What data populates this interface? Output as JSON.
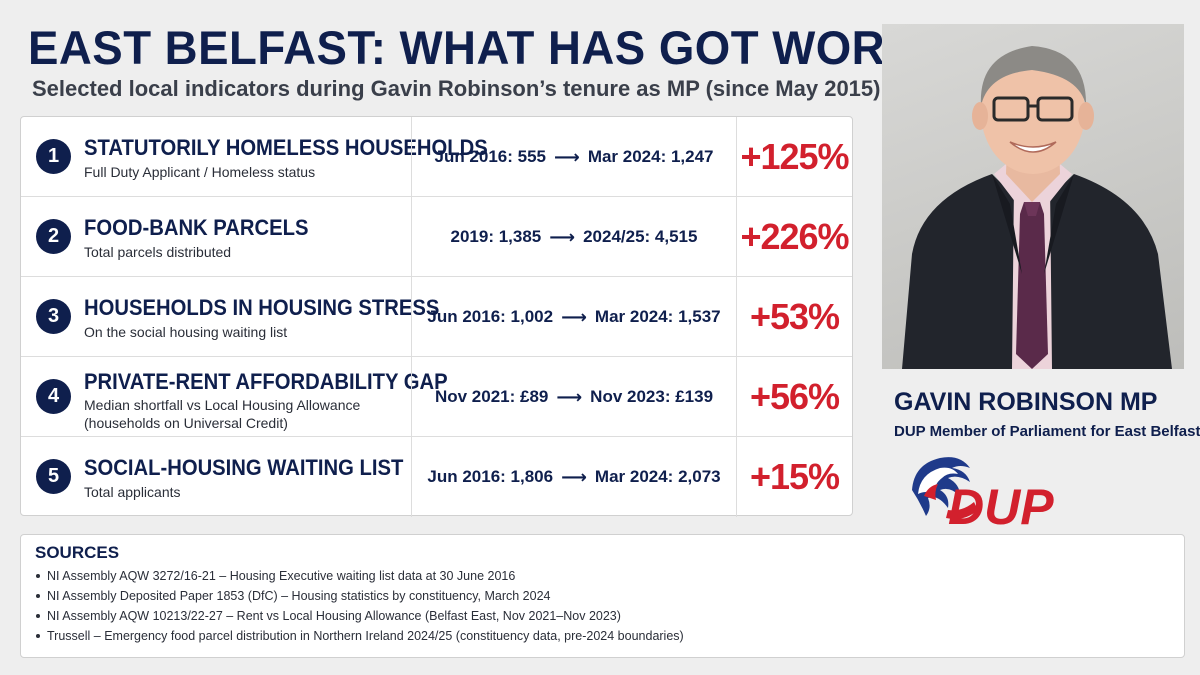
{
  "header": {
    "title": "EAST BELFAST: WHAT HAS GOT WORSE?",
    "subtitle": "Selected local indicators during Gavin Robinson’s tenure as MP (since May 2015)"
  },
  "indicators": [
    {
      "number": "1",
      "title": "STATUTORILY HOMELESS HOUSEHOLDS",
      "subtitle": "Full Duty Applicant / Homeless status",
      "from": "Jun 2016: 555",
      "to": "Mar 2024: 1,247",
      "change": "+125%"
    },
    {
      "number": "2",
      "title": "FOOD-BANK PARCELS",
      "subtitle": "Total parcels distributed",
      "from": "2019: 1,385",
      "to": "2024/25: 4,515",
      "change": "+226%"
    },
    {
      "number": "3",
      "title": "HOUSEHOLDS IN HOUSING STRESS",
      "subtitle": "On the social housing waiting list",
      "from": "Jun 2016: 1,002",
      "to": "Mar 2024: 1,537",
      "change": "+53%"
    },
    {
      "number": "4",
      "title": "PRIVATE-RENT AFFORDABILITY GAP",
      "subtitle_line1": "Median shortfall vs Local Housing Allowance",
      "subtitle_line2": "(households on Universal Credit)",
      "from": "Nov 2021: £89",
      "to": "Nov 2023: £139",
      "change": "+56%"
    },
    {
      "number": "5",
      "title": "SOCIAL-HOUSING WAITING LIST",
      "subtitle": "Total applicants",
      "from": "Jun 2016: 1,806",
      "to": "Mar 2024: 2,073",
      "change": "+15%"
    }
  ],
  "profile": {
    "name": "GAVIN ROBINSON MP",
    "role": "DUP Member of Parliament for East Belfast",
    "logo_text": "DUP"
  },
  "sources": {
    "title": "SOURCES",
    "items": [
      "NI Assembly AQW 3272/16-21 – Housing Executive waiting list data at 30 June 2016",
      "NI Assembly Deposited Paper 1853 (DfC) – Housing statistics by constituency, March 2024",
      "NI Assembly AQW 10213/22-27 – Rent vs Local Housing Allowance (Belfast East, Nov 2021–Nov 2023)",
      "Trussell – Emergency food parcel distribution in Northern Ireland 2024/25 (constituency data, pre-2024 boundaries)"
    ]
  },
  "colors": {
    "navy": "#0f1f4d",
    "red": "#d2202d",
    "background": "#eeeeee"
  }
}
